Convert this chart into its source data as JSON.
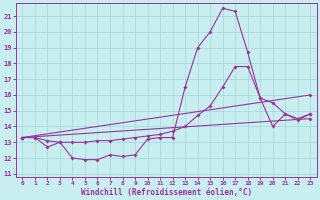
{
  "xlabel": "Windchill (Refroidissement éolien,°C)",
  "bg_color": "#c8eef0",
  "grid_color": "#a0d8d8",
  "line_color": "#993399",
  "x_min": 0,
  "x_max": 23,
  "y_min": 11,
  "y_max": 21.5,
  "yticks": [
    11,
    12,
    13,
    14,
    15,
    16,
    17,
    18,
    19,
    20,
    21
  ],
  "xticks": [
    0,
    1,
    2,
    3,
    4,
    5,
    6,
    7,
    8,
    9,
    10,
    11,
    12,
    13,
    14,
    15,
    16,
    17,
    18,
    19,
    20,
    21,
    22,
    23
  ],
  "line1_x": [
    0,
    1,
    2,
    3,
    4,
    5,
    6,
    7,
    8,
    9,
    10,
    11,
    12,
    13,
    14,
    15,
    16,
    17,
    18,
    19,
    20,
    21,
    22,
    23
  ],
  "line1_y": [
    13.3,
    13.3,
    12.7,
    13.0,
    12.0,
    11.9,
    11.9,
    12.2,
    12.1,
    12.2,
    13.2,
    13.3,
    13.3,
    16.5,
    19.0,
    20.0,
    21.5,
    21.3,
    18.7,
    15.8,
    14.0,
    14.8,
    14.5,
    14.8
  ],
  "line2_x": [
    0,
    1,
    2,
    3,
    4,
    5,
    6,
    7,
    8,
    9,
    10,
    11,
    12,
    13,
    14,
    15,
    16,
    17,
    18,
    19,
    20,
    21,
    22,
    23
  ],
  "line2_y": [
    13.3,
    13.3,
    13.1,
    13.0,
    13.0,
    13.0,
    13.1,
    13.1,
    13.2,
    13.3,
    13.4,
    13.5,
    13.7,
    14.0,
    14.7,
    15.3,
    16.5,
    17.8,
    17.8,
    15.8,
    15.5,
    14.8,
    14.4,
    14.8
  ],
  "line3_x": [
    0,
    23
  ],
  "line3_y": [
    13.3,
    16.0
  ],
  "line4_x": [
    0,
    23
  ],
  "line4_y": [
    13.3,
    14.5
  ]
}
